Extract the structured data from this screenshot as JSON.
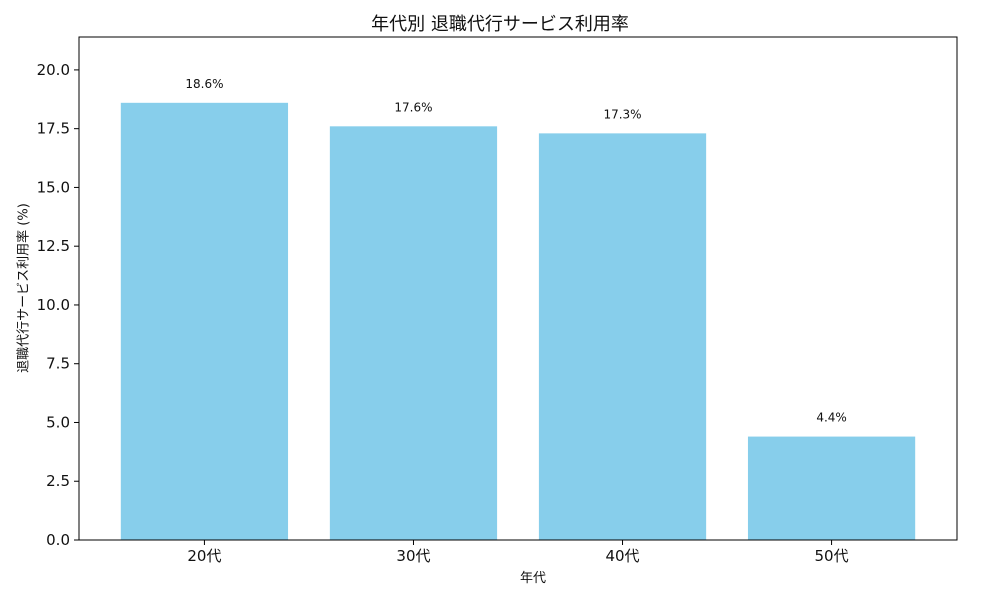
{
  "chart_data": {
    "type": "bar",
    "title": "年代別 退職代行サービス利用率",
    "xlabel": "年代",
    "ylabel": "退職代行サービス利用率 (%)",
    "categories": [
      "20代",
      "30代",
      "40代",
      "50代"
    ],
    "values": [
      18.6,
      17.6,
      17.3,
      4.4
    ],
    "value_labels": [
      "18.6%",
      "17.6%",
      "17.3%",
      "4.4%"
    ],
    "ylim": [
      0,
      21.4
    ],
    "yticks": [
      0.0,
      2.5,
      5.0,
      7.5,
      10.0,
      12.5,
      15.0,
      17.5,
      20.0
    ],
    "ytick_labels": [
      "0.0",
      "2.5",
      "5.0",
      "7.5",
      "10.0",
      "12.5",
      "15.0",
      "17.5",
      "20.0"
    ],
    "bar_color": "#87ceeb",
    "grid": false,
    "legend": "none"
  }
}
